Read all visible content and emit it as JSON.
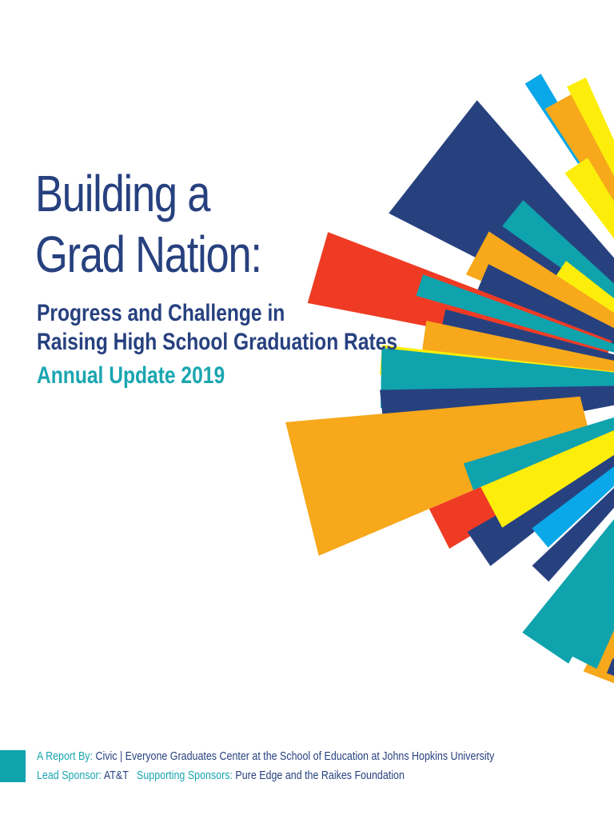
{
  "cover": {
    "title_line1": "Building a",
    "title_line2": "Grad Nation:",
    "subtitle_line1": "Progress and Challenge in",
    "subtitle_line2": "Raising High School Graduation Rates",
    "update": "Annual Update 2019"
  },
  "credits": {
    "report_by_label": "A Report By:",
    "report_by_value": "Civic | Everyone Graduates Center at the School of Education at Johns Hopkins University",
    "lead_sponsor_label": "Lead Sponsor:",
    "lead_sponsor_value": "AT&T",
    "supporting_label": "Supporting Sponsors:",
    "supporting_value": "Pure Edge and the Raikes Foundation"
  },
  "colors": {
    "navy": "#27417f",
    "teal": "#0fa3ad",
    "orange": "#f7a81b",
    "yellow": "#fcee0a",
    "red": "#ef3b24",
    "sky": "#0aa8e8"
  }
}
